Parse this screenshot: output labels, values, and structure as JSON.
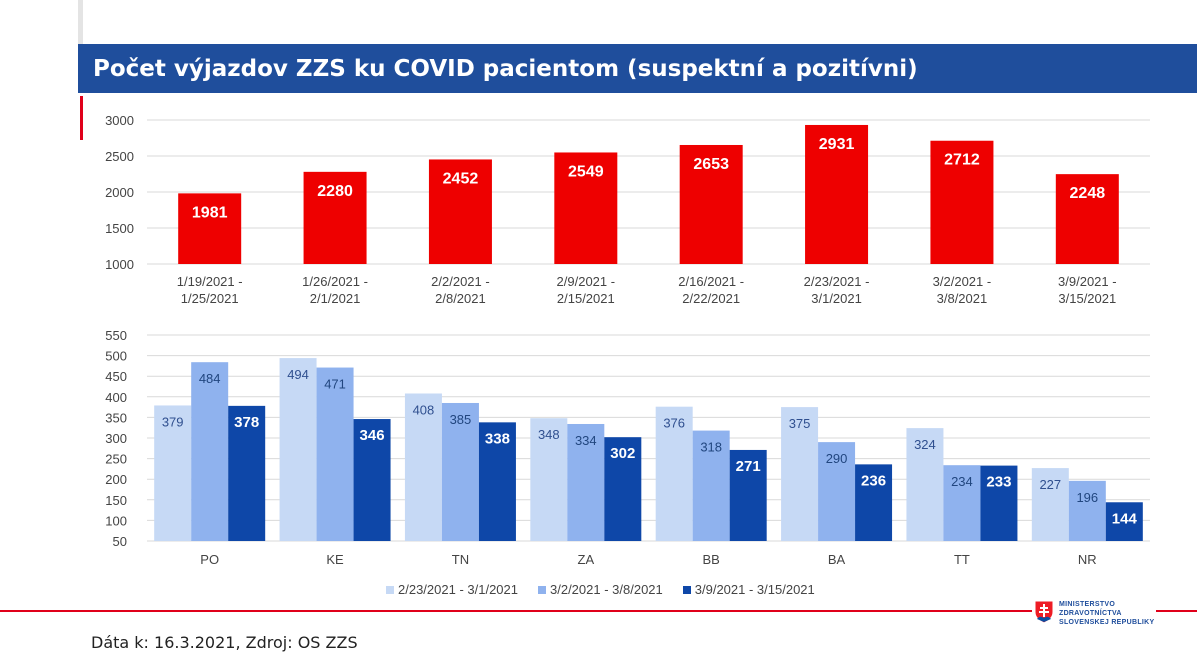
{
  "header": {
    "title": "Počet výjazdov ZZS ku COVID pacientom (suspektní a pozitívni)"
  },
  "colors": {
    "title_bar": "#1f4e9c",
    "red_bar": "#ee0000",
    "series_light": "#c6d9f5",
    "series_mid": "#8fb2ee",
    "series_dark": "#0e47a8",
    "accent_red": "#e0001a"
  },
  "chart_data": [
    {
      "type": "bar",
      "categories": [
        [
          "1/19/2021 -",
          "1/25/2021"
        ],
        [
          "1/26/2021 -",
          "2/1/2021"
        ],
        [
          "2/2/2021 -",
          "2/8/2021"
        ],
        [
          "2/9/2021 -",
          "2/15/2021"
        ],
        [
          "2/16/2021 -",
          "2/22/2021"
        ],
        [
          "2/23/2021 -",
          "3/1/2021"
        ],
        [
          "3/2/2021 -",
          "3/8/2021"
        ],
        [
          "3/9/2021 -",
          "3/15/2021"
        ]
      ],
      "values": [
        1981,
        2280,
        2452,
        2549,
        2653,
        2931,
        2712,
        2248
      ],
      "ylim": [
        1000,
        3000
      ],
      "yticks": [
        "1000",
        "1500",
        "2000",
        "2500",
        "3000"
      ],
      "grid": true
    },
    {
      "type": "bar",
      "categories": [
        "PO",
        "KE",
        "TN",
        "ZA",
        "BB",
        "BA",
        "TT",
        "NR"
      ],
      "series": [
        {
          "name": "2/23/2021 - 3/1/2021",
          "values": [
            379,
            494,
            408,
            348,
            376,
            375,
            324,
            227
          ]
        },
        {
          "name": "3/2/2021 - 3/8/2021",
          "values": [
            484,
            471,
            385,
            334,
            318,
            290,
            234,
            196
          ]
        },
        {
          "name": "3/9/2021 - 3/15/2021",
          "values": [
            378,
            346,
            338,
            302,
            271,
            236,
            233,
            144
          ]
        }
      ],
      "ylim": [
        50,
        550
      ],
      "yticks": [
        "50",
        "100",
        "150",
        "200",
        "250",
        "300",
        "350",
        "400",
        "450",
        "500",
        "550"
      ],
      "legend": "bottom",
      "grid": true
    }
  ],
  "footer": {
    "source": "Dáta k: 16.3.2021, Zdroj: OS ZZS",
    "logo_lines": [
      "MINISTERSTVO",
      "ZDRAVOTNÍCTVA",
      "SLOVENSKEJ REPUBLIKY"
    ],
    "logo_icon": "slovak-coat-of-arms-icon"
  }
}
